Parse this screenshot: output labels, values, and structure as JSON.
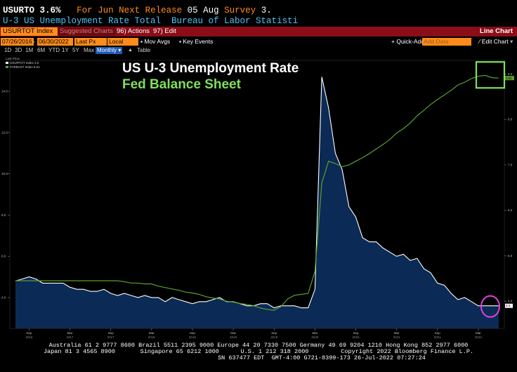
{
  "header": {
    "ticker": "USURTO",
    "value": "3.6%",
    "for_text": "For Jun",
    "next_release_label": "Next Release",
    "next_release_date": "05 Aug",
    "survey_label": "Survey",
    "survey_value": "3.",
    "subtitle": "U-3 US Unemployment Rate Total  Bureau of Labor Statisti"
  },
  "toolbar": {
    "security": "USURTOT Index",
    "suggested": "Suggested Charts",
    "actions": "96) Actions",
    "edit": "97) Edit",
    "chart_type": "Line Chart"
  },
  "controls": {
    "start_date": "07/26/2016",
    "end_date": "06/30/2022",
    "price_field": "Last Px",
    "currency": "Local CCY",
    "mov_avgs": "Mov Avgs",
    "key_events": "Key Events",
    "quick_add": "Quick-Add",
    "add_data_placeholder": "Add Data",
    "edit_chart": "Edit Chart"
  },
  "periods": {
    "items": [
      "1D",
      "3D",
      "1M",
      "6M",
      "YTD",
      "1Y",
      "5Y",
      "Max"
    ],
    "frequency": "Monthly",
    "table": "Table"
  },
  "legend": {
    "header": "Last Price",
    "unemp": "USURTOT Index  3.6",
    "fed": "FARBAST Index  8.91",
    "unemp_color": "#ffffff",
    "fed_color": "#5aa02c"
  },
  "chart_data": {
    "type": "line",
    "title": "US U-3 Unemployment Rate",
    "subtitle": "Fed Balance Sheet",
    "title_color": "#ffffff",
    "subtitle_color": "#7fe05a",
    "x": [
      "2016-07",
      "2016-08",
      "2016-09",
      "2016-10",
      "2016-11",
      "2016-12",
      "2017-01",
      "2017-02",
      "2017-03",
      "2017-04",
      "2017-05",
      "2017-06",
      "2017-07",
      "2017-08",
      "2017-09",
      "2017-10",
      "2017-11",
      "2017-12",
      "2018-01",
      "2018-02",
      "2018-03",
      "2018-04",
      "2018-05",
      "2018-06",
      "2018-07",
      "2018-08",
      "2018-09",
      "2018-10",
      "2018-11",
      "2018-12",
      "2019-01",
      "2019-02",
      "2019-03",
      "2019-04",
      "2019-05",
      "2019-06",
      "2019-07",
      "2019-08",
      "2019-09",
      "2019-10",
      "2019-11",
      "2019-12",
      "2020-01",
      "2020-02",
      "2020-03",
      "2020-04",
      "2020-05",
      "2020-06",
      "2020-07",
      "2020-08",
      "2020-09",
      "2020-10",
      "2020-11",
      "2020-12",
      "2021-01",
      "2021-02",
      "2021-03",
      "2021-04",
      "2021-05",
      "2021-06",
      "2021-07",
      "2021-08",
      "2021-09",
      "2021-10",
      "2021-11",
      "2021-12",
      "2022-01",
      "2022-02",
      "2022-03",
      "2022-04",
      "2022-05",
      "2022-06"
    ],
    "series": [
      {
        "name": "USURTOT Index",
        "color": "#ffffff",
        "axis": "left",
        "values": [
          4.8,
          4.9,
          5.0,
          4.9,
          4.7,
          4.7,
          4.7,
          4.7,
          4.5,
          4.4,
          4.4,
          4.3,
          4.3,
          4.4,
          4.2,
          4.1,
          4.2,
          4.1,
          4.0,
          4.1,
          4.0,
          4.0,
          3.8,
          4.0,
          3.9,
          3.8,
          3.7,
          3.8,
          3.8,
          3.9,
          4.0,
          3.8,
          3.8,
          3.7,
          3.6,
          3.6,
          3.7,
          3.7,
          3.5,
          3.6,
          3.6,
          3.6,
          3.5,
          3.5,
          4.4,
          14.7,
          13.2,
          11.0,
          10.2,
          8.4,
          7.9,
          6.9,
          6.7,
          6.7,
          6.4,
          6.2,
          6.0,
          6.1,
          5.8,
          5.9,
          5.4,
          5.2,
          4.7,
          4.6,
          4.2,
          3.9,
          4.0,
          3.8,
          3.6,
          3.6,
          3.6,
          3.6
        ]
      },
      {
        "name": "FARBAST Index",
        "color": "#5aa02c",
        "axis": "right",
        "values": [
          4.45,
          4.45,
          4.45,
          4.45,
          4.45,
          4.45,
          4.45,
          4.45,
          4.45,
          4.45,
          4.45,
          4.45,
          4.45,
          4.45,
          4.45,
          4.45,
          4.43,
          4.4,
          4.4,
          4.38,
          4.38,
          4.33,
          4.3,
          4.27,
          4.24,
          4.2,
          4.18,
          4.15,
          4.1,
          4.07,
          4.05,
          4.0,
          3.98,
          3.95,
          3.93,
          3.9,
          3.85,
          3.82,
          3.8,
          3.88,
          4.05,
          4.13,
          4.15,
          4.17,
          4.66,
          6.6,
          7.08,
          7.03,
          6.96,
          7.0,
          7.08,
          7.16,
          7.25,
          7.35,
          7.45,
          7.56,
          7.7,
          7.8,
          7.92,
          8.08,
          8.2,
          8.33,
          8.44,
          8.54,
          8.64,
          8.76,
          8.82,
          8.9,
          8.95,
          8.97,
          8.92,
          8.91
        ]
      }
    ],
    "left_axis": {
      "ylim": [
        2.5,
        15.5
      ],
      "ticks": [
        4.0,
        6.0,
        8.0,
        10.0,
        12.0,
        14.0
      ],
      "color": "#ffffff"
    },
    "right_axis": {
      "ylim": [
        3.4,
        9.3
      ],
      "ticks": [
        4.0,
        5.0,
        6.0,
        7.0,
        8.0,
        9.0
      ],
      "color": "#ffffff"
    },
    "x_ticks": [
      {
        "label": "Sep",
        "year": "2016",
        "at": "2016-09"
      },
      {
        "label": "Mar",
        "year": "2017",
        "at": "2017-03"
      },
      {
        "label": "Sep",
        "year": "2017",
        "at": "2017-09"
      },
      {
        "label": "Mar",
        "year": "2018",
        "at": "2018-03"
      },
      {
        "label": "Sep",
        "year": "2018",
        "at": "2018-09"
      },
      {
        "label": "Mar",
        "year": "2019",
        "at": "2019-03"
      },
      {
        "label": "Sep",
        "year": "2019",
        "at": "2019-09"
      },
      {
        "label": "Mar",
        "year": "2020",
        "at": "2020-03"
      },
      {
        "label": "Sep",
        "year": "2020",
        "at": "2020-09"
      },
      {
        "label": "Mar",
        "year": "2021",
        "at": "2021-03"
      },
      {
        "label": "Sep",
        "year": "2021",
        "at": "2021-09"
      },
      {
        "label": "Mar",
        "year": "2022",
        "at": "2022-03"
      }
    ],
    "last_value_labels": {
      "unemp": "3.6",
      "fed": "8.91"
    },
    "annotations": {
      "green_box_color": "#7fe05a",
      "circle_color": "#e040e0"
    },
    "fill_color": "#0b2a55",
    "grid": false
  },
  "footer": {
    "line1": "Australia 61 2 9777 8600 Brazil 5511 2395 9000 Europe 44 20 7330 7500 Germany 49 69 9204 1210 Hong Kong 852 2977 6000",
    "line2": "Japan 81 3 4565 8900       Singapore 65 6212 1000      U.S. 1 212 318 2000         Copyright 2022 Bloomberg Finance L.P.",
    "line3": "SN 637477 EDT  GMT-4:00 G721-8399-173 26-Jul-2022 07:27:24"
  }
}
